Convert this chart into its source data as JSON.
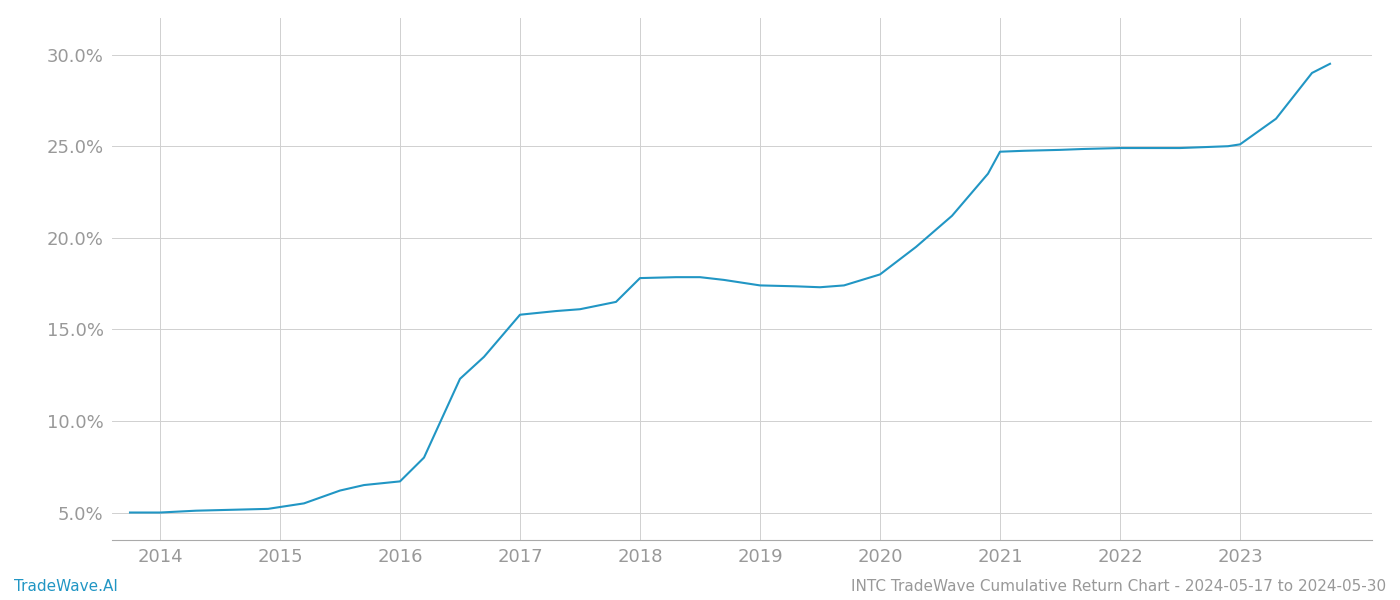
{
  "x_years": [
    2013.75,
    2014.0,
    2014.3,
    2014.6,
    2014.9,
    2015.0,
    2015.2,
    2015.5,
    2015.7,
    2015.85,
    2016.0,
    2016.2,
    2016.5,
    2016.7,
    2017.0,
    2017.3,
    2017.5,
    2017.8,
    2018.0,
    2018.3,
    2018.5,
    2018.7,
    2019.0,
    2019.3,
    2019.5,
    2019.7,
    2020.0,
    2020.3,
    2020.6,
    2020.9,
    2021.0,
    2021.2,
    2021.5,
    2021.7,
    2022.0,
    2022.2,
    2022.5,
    2022.7,
    2022.9,
    2023.0,
    2023.3,
    2023.6,
    2023.75
  ],
  "y_values": [
    5.0,
    5.0,
    5.1,
    5.15,
    5.2,
    5.3,
    5.5,
    6.2,
    6.5,
    6.6,
    6.7,
    8.0,
    12.3,
    13.5,
    15.8,
    16.0,
    16.1,
    16.5,
    17.8,
    17.85,
    17.85,
    17.7,
    17.4,
    17.35,
    17.3,
    17.4,
    18.0,
    19.5,
    21.2,
    23.5,
    24.7,
    24.75,
    24.8,
    24.85,
    24.9,
    24.9,
    24.9,
    24.95,
    25.0,
    25.1,
    26.5,
    29.0,
    29.5
  ],
  "line_color": "#2196c4",
  "line_width": 1.5,
  "background_color": "#ffffff",
  "grid_color": "#d0d0d0",
  "yticks": [
    5.0,
    10.0,
    15.0,
    20.0,
    25.0,
    30.0
  ],
  "xticks": [
    2014,
    2015,
    2016,
    2017,
    2018,
    2019,
    2020,
    2021,
    2022,
    2023
  ],
  "xlim": [
    2013.6,
    2024.1
  ],
  "ylim": [
    3.5,
    32.0
  ],
  "footer_left": "TradeWave.AI",
  "footer_right": "INTC TradeWave Cumulative Return Chart - 2024-05-17 to 2024-05-30",
  "footer_color": "#999999",
  "footer_left_color": "#2196c4",
  "tick_label_color": "#999999",
  "tick_label_size": 13,
  "footer_size": 11,
  "spine_color": "#cccccc"
}
